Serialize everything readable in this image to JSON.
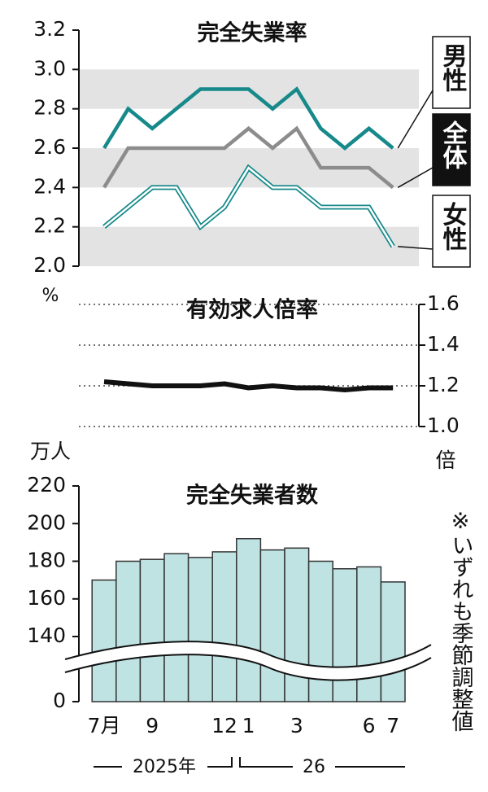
{
  "chart_data": [
    {
      "type": "line",
      "title": "完全失業率",
      "unit": "%",
      "ylim": [
        2,
        3.2
      ],
      "yticks": [
        {
          "value": 2,
          "label": "2.0"
        },
        2.2,
        2.4,
        2.6,
        2.8,
        {
          "value": 3,
          "label": "3.0"
        },
        3.2
      ],
      "grid": "bands",
      "axis_position": "left",
      "series": [
        {
          "name": "男性",
          "color": "#17898a",
          "line_style": "solid",
          "values": [
            2.6,
            2.8,
            2.7,
            2.8,
            2.9,
            2.9,
            2.9,
            2.8,
            2.9,
            2.7,
            2.6,
            2.7,
            2.6
          ]
        },
        {
          "name": "全体",
          "color": "#8c8c8c",
          "line_style": "solid",
          "values": [
            2.4,
            2.6,
            2.6,
            2.6,
            2.6,
            2.6,
            2.7,
            2.6,
            2.7,
            2.5,
            2.5,
            2.5,
            2.4
          ]
        },
        {
          "name": "女性",
          "color": "#17898a",
          "line_style": "double",
          "values": [
            2.2,
            2.3,
            2.4,
            2.4,
            2.2,
            2.3,
            2.5,
            2.4,
            2.4,
            2.3,
            2.3,
            2.3,
            2.1
          ]
        }
      ]
    },
    {
      "type": "line",
      "title": "有効求人倍率",
      "unit": "倍",
      "ylim": [
        1,
        1.6
      ],
      "yticks": [
        {
          "value": 1,
          "label": "1.0"
        },
        1.2,
        1.4,
        1.6
      ],
      "grid": "dotted",
      "axis_position": "right",
      "series": [
        {
          "color": "#111111",
          "line_style": "solid",
          "values": [
            1.22,
            1.21,
            1.2,
            1.2,
            1.2,
            1.21,
            1.19,
            1.2,
            1.19,
            1.19,
            1.18,
            1.19,
            1.19
          ]
        }
      ]
    },
    {
      "type": "bar",
      "title": "完全失業者数",
      "unit": "万人",
      "categories": [
        "7月",
        null,
        "9",
        null,
        null,
        "12",
        "1",
        null,
        "3",
        null,
        null,
        "6",
        "7"
      ],
      "x_groups": [
        "2025年",
        "26"
      ],
      "values": [
        170,
        180,
        181,
        184,
        182,
        185,
        192,
        186,
        187,
        180,
        176,
        177,
        169
      ],
      "color": "#bfe2e2",
      "ylim": [
        0,
        220
      ],
      "yticks": [
        0,
        140,
        160,
        180,
        200,
        220
      ],
      "scale_break": true,
      "axis_position": "left",
      "note": "※いずれも季節調整値"
    }
  ]
}
